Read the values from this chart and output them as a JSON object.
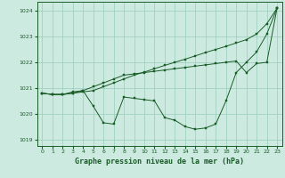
{
  "title": "Graphe pression niveau de la mer (hPa)",
  "bg_color": "#cceae0",
  "grid_color": "#99ccbb",
  "line_color": "#1a5c28",
  "xlim": [
    -0.5,
    23.5
  ],
  "ylim": [
    1018.75,
    1024.35
  ],
  "yticks": [
    1019,
    1020,
    1021,
    1022,
    1023,
    1024
  ],
  "xticks": [
    0,
    1,
    2,
    3,
    4,
    5,
    6,
    7,
    8,
    9,
    10,
    11,
    12,
    13,
    14,
    15,
    16,
    17,
    18,
    19,
    20,
    21,
    22,
    23
  ],
  "series1": [
    1020.8,
    1020.75,
    1020.75,
    1020.8,
    1020.85,
    1020.9,
    1021.05,
    1021.2,
    1021.35,
    1021.5,
    1021.62,
    1021.75,
    1021.88,
    1022.0,
    1022.12,
    1022.25,
    1022.38,
    1022.5,
    1022.62,
    1022.75,
    1022.88,
    1023.1,
    1023.5,
    1024.1
  ],
  "series2": [
    1020.8,
    1020.75,
    1020.75,
    1020.8,
    1020.9,
    1021.05,
    1021.2,
    1021.35,
    1021.5,
    1021.55,
    1021.6,
    1021.65,
    1021.7,
    1021.75,
    1021.8,
    1021.85,
    1021.9,
    1021.95,
    1022.0,
    1022.05,
    1021.6,
    1021.95,
    1022.0,
    1024.1
  ],
  "series3": [
    1020.8,
    1020.75,
    1020.75,
    1020.85,
    1020.9,
    1020.3,
    1019.65,
    1019.6,
    1020.65,
    1020.6,
    1020.55,
    1020.5,
    1019.85,
    1019.75,
    1019.5,
    1019.4,
    1019.45,
    1019.6,
    1020.5,
    1021.6,
    1022.0,
    1022.4,
    1023.1,
    1024.1
  ]
}
